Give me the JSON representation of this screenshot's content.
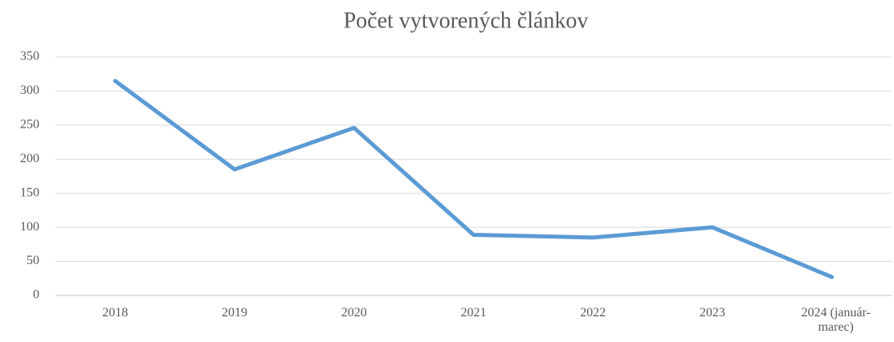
{
  "chart_data": {
    "type": "line",
    "title": "Počet vytvorených článkov",
    "categories": [
      "2018",
      "2019",
      "2020",
      "2021",
      "2022",
      "2023",
      "2024 (január-marec)"
    ],
    "series": [
      {
        "name": "Počet vytvorených článkov",
        "color": "#5b9bd5",
        "values": [
          315,
          185,
          246,
          89,
          85,
          100,
          27
        ]
      }
    ],
    "ylim": [
      0,
      350
    ],
    "yticks": [
      0,
      50,
      100,
      150,
      200,
      250,
      300,
      350
    ],
    "grid": true
  }
}
